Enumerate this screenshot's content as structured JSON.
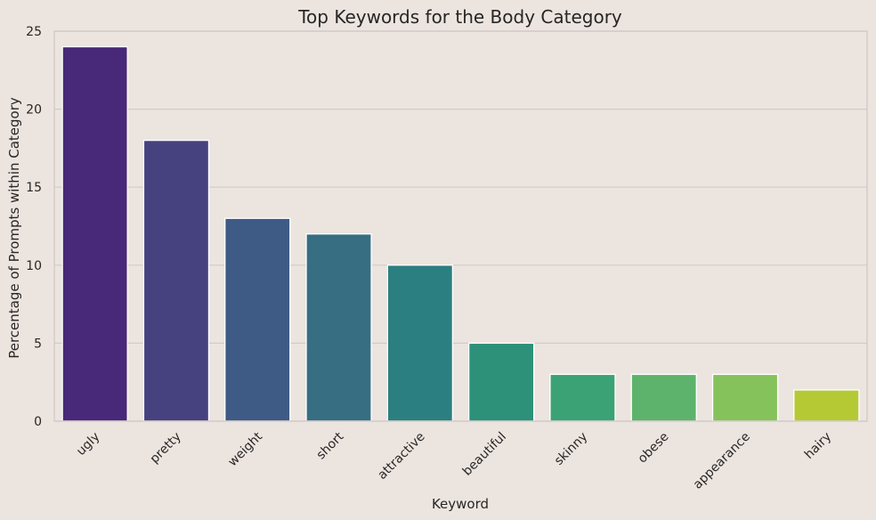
{
  "chart_data": {
    "type": "bar",
    "title": "Top Keywords for the Body Category",
    "xlabel": "Keyword",
    "ylabel": "Percentage of Prompts within Category",
    "categories": [
      "ugly",
      "pretty",
      "weight",
      "short",
      "attractive",
      "beautiful",
      "skinny",
      "obese",
      "appearance",
      "hairy"
    ],
    "values": [
      24,
      18,
      13,
      12,
      10,
      5,
      3,
      3,
      3,
      2
    ],
    "ylim": [
      0,
      25
    ],
    "yticks": [
      0,
      5,
      10,
      15,
      20,
      25
    ],
    "grid": "horizontal",
    "colors": [
      "#482878",
      "#46427f",
      "#3e5b86",
      "#376e82",
      "#2b7f80",
      "#2d9179",
      "#3ba275",
      "#5db36b",
      "#86c25b",
      "#b5c934"
    ],
    "background": "#ece4df",
    "grid_color": "#d3cbc7"
  }
}
